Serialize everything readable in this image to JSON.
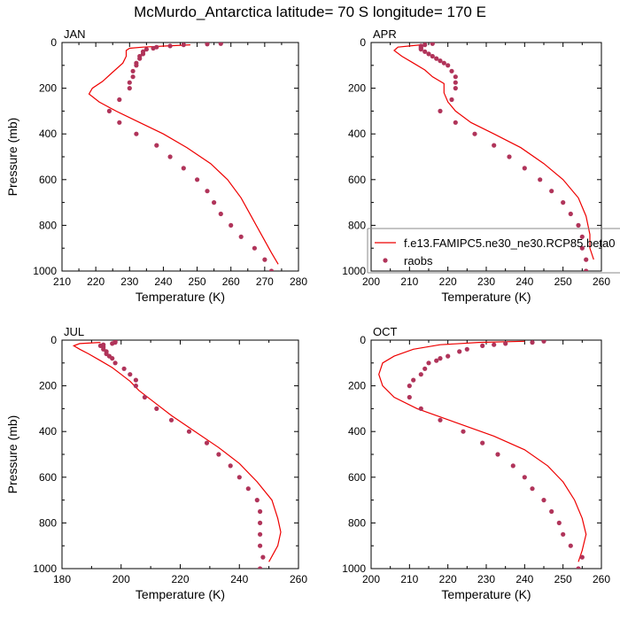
{
  "page_title": "McMurdo_Antarctica  latitude= 70 S longitude= 170 E",
  "colors": {
    "model_line": "#ee0000",
    "obs_marker": "#b0345a",
    "axis": "#000000",
    "legend_frame": "#888888"
  },
  "legend": {
    "model_label": "f.e13.FAMIPC5.ne30_ne30.RCP85.beta0",
    "obs_label": "raobs",
    "panel": "APR",
    "position": "lower-right"
  },
  "chart_data": [
    {
      "type": "line",
      "title": "JAN",
      "xlabel": "Temperature (K)",
      "ylabel": "Pressure (mb)",
      "xlim": [
        210,
        280
      ],
      "ylim": [
        1000,
        0
      ],
      "xticks": [
        210,
        220,
        230,
        240,
        250,
        260,
        270,
        280
      ],
      "yticks": [
        0,
        200,
        400,
        600,
        800,
        1000
      ],
      "grid": false,
      "series": [
        {
          "name": "f.e13.FAMIPC5.ne30_ne30.RCP85.beta0",
          "style": "line",
          "points": [
            [
              248,
              10
            ],
            [
              241,
              15
            ],
            [
              234,
              20
            ],
            [
              230,
              25
            ],
            [
              229,
              35
            ],
            [
              229,
              60
            ],
            [
              228,
              90
            ],
            [
              225,
              130
            ],
            [
              222,
              170
            ],
            [
              219,
              200
            ],
            [
              218,
              225
            ],
            [
              221,
              260
            ],
            [
              226,
              300
            ],
            [
              233,
              350
            ],
            [
              240,
              400
            ],
            [
              247,
              460
            ],
            [
              254,
              530
            ],
            [
              259,
              600
            ],
            [
              263,
              680
            ],
            [
              266,
              760
            ],
            [
              269,
              840
            ],
            [
              272,
              920
            ],
            [
              274,
              970
            ]
          ]
        },
        {
          "name": "raobs",
          "style": "markers",
          "points": [
            [
              257,
              5
            ],
            [
              253,
              7
            ],
            [
              246,
              10
            ],
            [
              242,
              15
            ],
            [
              238,
              20
            ],
            [
              237,
              25
            ],
            [
              235,
              30
            ],
            [
              234,
              40
            ],
            [
              234,
              50
            ],
            [
              233,
              60
            ],
            [
              233,
              70
            ],
            [
              232,
              90
            ],
            [
              232,
              100
            ],
            [
              231,
              125
            ],
            [
              231,
              150
            ],
            [
              230,
              175
            ],
            [
              230,
              200
            ],
            [
              227,
              250
            ],
            [
              224,
              300
            ],
            [
              227,
              350
            ],
            [
              232,
              400
            ],
            [
              238,
              450
            ],
            [
              242,
              500
            ],
            [
              246,
              550
            ],
            [
              250,
              600
            ],
            [
              253,
              650
            ],
            [
              255,
              700
            ],
            [
              257,
              750
            ],
            [
              260,
              800
            ],
            [
              263,
              850
            ],
            [
              267,
              900
            ],
            [
              270,
              950
            ],
            [
              272,
              1000
            ]
          ]
        }
      ]
    },
    {
      "type": "line",
      "title": "APR",
      "xlabel": "Temperature (K)",
      "ylabel": "",
      "xlim": [
        200,
        260
      ],
      "ylim": [
        1000,
        0
      ],
      "xticks": [
        200,
        210,
        220,
        230,
        240,
        250,
        260
      ],
      "yticks": [
        0,
        200,
        400,
        600,
        800,
        1000
      ],
      "grid": false,
      "series": [
        {
          "name": "f.e13.FAMIPC5.ne30_ne30.RCP85.beta0",
          "style": "line",
          "points": [
            [
              213,
              10
            ],
            [
              207,
              20
            ],
            [
              206,
              35
            ],
            [
              208,
              60
            ],
            [
              211,
              90
            ],
            [
              214,
              120
            ],
            [
              216,
              150
            ],
            [
              219,
              180
            ],
            [
              219,
              220
            ],
            [
              220,
              260
            ],
            [
              222,
              300
            ],
            [
              226,
              350
            ],
            [
              232,
              400
            ],
            [
              239,
              460
            ],
            [
              245,
              530
            ],
            [
              250,
              600
            ],
            [
              254,
              680
            ],
            [
              256,
              760
            ],
            [
              257,
              840
            ],
            [
              257,
              900
            ],
            [
              258,
              950
            ]
          ]
        },
        {
          "name": "raobs",
          "style": "markers",
          "points": [
            [
              216,
              5
            ],
            [
              214,
              10
            ],
            [
              213,
              15
            ],
            [
              213,
              20
            ],
            [
              213,
              25
            ],
            [
              213,
              30
            ],
            [
              214,
              40
            ],
            [
              215,
              50
            ],
            [
              216,
              60
            ],
            [
              217,
              70
            ],
            [
              218,
              80
            ],
            [
              219,
              90
            ],
            [
              220,
              100
            ],
            [
              221,
              125
            ],
            [
              222,
              150
            ],
            [
              222,
              175
            ],
            [
              222,
              200
            ],
            [
              221,
              250
            ],
            [
              218,
              300
            ],
            [
              222,
              350
            ],
            [
              227,
              400
            ],
            [
              232,
              450
            ],
            [
              236,
              500
            ],
            [
              240,
              550
            ],
            [
              244,
              600
            ],
            [
              247,
              650
            ],
            [
              250,
              700
            ],
            [
              252,
              750
            ],
            [
              254,
              800
            ],
            [
              255,
              850
            ],
            [
              255,
              900
            ],
            [
              256,
              950
            ],
            [
              256,
              1000
            ]
          ]
        }
      ]
    },
    {
      "type": "line",
      "title": "JUL",
      "xlabel": "Temperature (K)",
      "ylabel": "Pressure (mb)",
      "xlim": [
        180,
        260
      ],
      "ylim": [
        1000,
        0
      ],
      "xticks": [
        180,
        200,
        220,
        240,
        260
      ],
      "yticks": [
        0,
        200,
        400,
        600,
        800,
        1000
      ],
      "grid": false,
      "series": [
        {
          "name": "f.e13.FAMIPC5.ne30_ne30.RCP85.beta0",
          "style": "line",
          "points": [
            [
              193,
              10
            ],
            [
              186,
              15
            ],
            [
              184,
              25
            ],
            [
              186,
              40
            ],
            [
              189,
              60
            ],
            [
              193,
              90
            ],
            [
              197,
              120
            ],
            [
              200,
              150
            ],
            [
              203,
              180
            ],
            [
              206,
              220
            ],
            [
              211,
              270
            ],
            [
              217,
              330
            ],
            [
              225,
              400
            ],
            [
              233,
              470
            ],
            [
              240,
              540
            ],
            [
              246,
              620
            ],
            [
              251,
              700
            ],
            [
              253,
              780
            ],
            [
              254,
              840
            ],
            [
              253,
              900
            ],
            [
              250,
              970
            ]
          ]
        },
        {
          "name": "raobs",
          "style": "markers",
          "points": [
            [
              198,
              5
            ],
            [
              198,
              10
            ],
            [
              197,
              15
            ],
            [
              194,
              20
            ],
            [
              193,
              25
            ],
            [
              194,
              30
            ],
            [
              194,
              40
            ],
            [
              195,
              50
            ],
            [
              195,
              60
            ],
            [
              196,
              70
            ],
            [
              197,
              80
            ],
            [
              198,
              100
            ],
            [
              201,
              125
            ],
            [
              203,
              150
            ],
            [
              205,
              175
            ],
            [
              205,
              200
            ],
            [
              208,
              250
            ],
            [
              212,
              300
            ],
            [
              217,
              350
            ],
            [
              223,
              400
            ],
            [
              229,
              450
            ],
            [
              233,
              500
            ],
            [
              237,
              550
            ],
            [
              240,
              600
            ],
            [
              243,
              650
            ],
            [
              246,
              700
            ],
            [
              247,
              750
            ],
            [
              247,
              800
            ],
            [
              247,
              850
            ],
            [
              247,
              900
            ],
            [
              248,
              950
            ],
            [
              247,
              1000
            ]
          ]
        }
      ]
    },
    {
      "type": "line",
      "title": "OCT",
      "xlabel": "Temperature (K)",
      "ylabel": "",
      "xlim": [
        200,
        260
      ],
      "ylim": [
        1000,
        0
      ],
      "xticks": [
        200,
        210,
        220,
        230,
        240,
        250,
        260
      ],
      "yticks": [
        0,
        200,
        400,
        600,
        800,
        1000
      ],
      "grid": false,
      "series": [
        {
          "name": "f.e13.FAMIPC5.ne30_ne30.RCP85.beta0",
          "style": "line",
          "points": [
            [
              240,
              5
            ],
            [
              228,
              10
            ],
            [
              218,
              20
            ],
            [
              211,
              40
            ],
            [
              206,
              70
            ],
            [
              203,
              100
            ],
            [
              202,
              150
            ],
            [
              203,
              200
            ],
            [
              206,
              250
            ],
            [
              212,
              300
            ],
            [
              222,
              360
            ],
            [
              232,
              420
            ],
            [
              240,
              480
            ],
            [
              246,
              550
            ],
            [
              250,
              620
            ],
            [
              253,
              700
            ],
            [
              255,
              780
            ],
            [
              256,
              850
            ],
            [
              255,
              920
            ],
            [
              254,
              970
            ]
          ]
        },
        {
          "name": "raobs",
          "style": "markers",
          "points": [
            [
              245,
              5
            ],
            [
              242,
              10
            ],
            [
              235,
              15
            ],
            [
              232,
              20
            ],
            [
              229,
              25
            ],
            [
              225,
              40
            ],
            [
              223,
              50
            ],
            [
              220,
              70
            ],
            [
              218,
              80
            ],
            [
              217,
              90
            ],
            [
              215,
              100
            ],
            [
              214,
              125
            ],
            [
              213,
              150
            ],
            [
              211,
              175
            ],
            [
              210,
              200
            ],
            [
              210,
              250
            ],
            [
              213,
              300
            ],
            [
              218,
              350
            ],
            [
              224,
              400
            ],
            [
              229,
              450
            ],
            [
              233,
              500
            ],
            [
              237,
              550
            ],
            [
              240,
              600
            ],
            [
              242,
              650
            ],
            [
              245,
              700
            ],
            [
              247,
              750
            ],
            [
              249,
              800
            ],
            [
              250,
              850
            ],
            [
              252,
              900
            ],
            [
              255,
              950
            ],
            [
              254,
              1000
            ]
          ]
        }
      ]
    }
  ]
}
